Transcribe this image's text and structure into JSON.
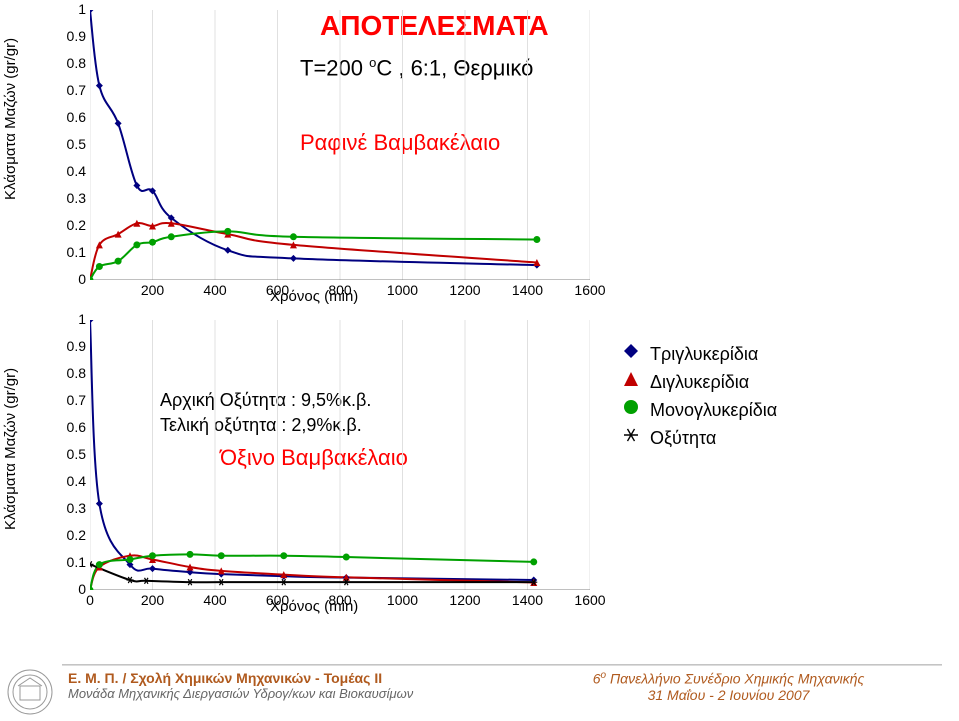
{
  "title": "ΑΠΟΤΕΛΕΣΜΑΤΑ",
  "subtitle": "Τ=200 οC , 6:1, Θερμικό",
  "subtitle_parts": {
    "prefix": "Τ=200 ",
    "sup": "o",
    "rest": "C , 6:1, Θερμικό"
  },
  "chartA": {
    "heading": "Ραφινέ Βαμβακέλαιο",
    "type": "line+scatter",
    "xlim": [
      0,
      1600
    ],
    "ylim": [
      0,
      1
    ],
    "xticks": [
      0,
      200,
      400,
      600,
      800,
      1000,
      1200,
      1400,
      1600
    ],
    "yticks": [
      0,
      0.1,
      0.2,
      0.3,
      0.4,
      0.5,
      0.6,
      0.7,
      0.8,
      0.9,
      1
    ],
    "xlabel": "Χρόνος (min)",
    "ylabel": "Κλάσματα Μαζών (gr/gr)",
    "grid_color": "#e0e0e0",
    "background_color": "#ffffff",
    "axis_color": "#808080",
    "marker_size": 7,
    "line_width": 2,
    "series": [
      {
        "name": "Τριγλυκερίδια",
        "color": "#000080",
        "marker": "diamond",
        "x": [
          0,
          30,
          90,
          150,
          200,
          260,
          441,
          651,
          1430
        ],
        "y": [
          1.0,
          0.72,
          0.58,
          0.35,
          0.33,
          0.23,
          0.11,
          0.08,
          0.055
        ]
      },
      {
        "name": "Διγλυκερίδια",
        "color": "#c00000",
        "marker": "triangle",
        "x": [
          0,
          30,
          90,
          150,
          200,
          260,
          441,
          651,
          1430
        ],
        "y": [
          0.0,
          0.13,
          0.17,
          0.21,
          0.2,
          0.21,
          0.17,
          0.13,
          0.065
        ]
      },
      {
        "name": "Μονογλυκερίδια",
        "color": "#00a000",
        "marker": "circle",
        "x": [
          0,
          30,
          90,
          150,
          200,
          260,
          441,
          651,
          1430
        ],
        "y": [
          0.0,
          0.05,
          0.07,
          0.13,
          0.14,
          0.16,
          0.18,
          0.16,
          0.15
        ]
      }
    ]
  },
  "chartB": {
    "heading": "Όξινο Βαμβακέλαιο",
    "type": "line+scatter",
    "xlim": [
      0,
      1600
    ],
    "ylim": [
      0,
      1
    ],
    "xticks": [
      0,
      200,
      400,
      600,
      800,
      1000,
      1200,
      1400,
      1600
    ],
    "yticks": [
      0,
      0.1,
      0.2,
      0.3,
      0.4,
      0.5,
      0.6,
      0.7,
      0.8,
      0.9,
      1
    ],
    "xlabel": "Χρόνος (min)",
    "ylabel": "Κλάσματα Μαζών (gr/gr)",
    "grid_color": "#e0e0e0",
    "background_color": "#ffffff",
    "axis_color": "#808080",
    "marker_size": 7,
    "line_width": 2,
    "initial_acid_label": "Αρχική Οξύτητα : 9,5%κ.β.",
    "final_acid_label": "Τελική οξύτητα : 2,9%κ.β.",
    "series": [
      {
        "name": "Τριγλυκερίδια",
        "color": "#000080",
        "marker": "diamond",
        "x": [
          0,
          30,
          128,
          200,
          320,
          420,
          620,
          820,
          1420
        ],
        "y": [
          1.0,
          0.32,
          0.094,
          0.079,
          0.066,
          0.059,
          0.051,
          0.046,
          0.037
        ]
      },
      {
        "name": "Διγλυκερίδια",
        "color": "#c00000",
        "marker": "triangle",
        "x": [
          0,
          30,
          128,
          200,
          320,
          420,
          620,
          820,
          1420
        ],
        "y": [
          0.0,
          0.085,
          0.127,
          0.113,
          0.085,
          0.071,
          0.057,
          0.047,
          0.028
        ]
      },
      {
        "name": "Μονογλυκερίδια",
        "color": "#00a000",
        "marker": "circle",
        "x": [
          0,
          30,
          128,
          200,
          320,
          420,
          620,
          820,
          1420
        ],
        "y": [
          0.0,
          0.094,
          0.113,
          0.127,
          0.132,
          0.127,
          0.127,
          0.122,
          0.104
        ]
      },
      {
        "name": "Οξύτητα",
        "color": "#000000",
        "marker": "star",
        "x": [
          0,
          128,
          180,
          320,
          420,
          620,
          820,
          1420
        ],
        "y": [
          0.095,
          0.037,
          0.034,
          0.029,
          0.029,
          0.029,
          0.029,
          0.029
        ]
      }
    ]
  },
  "legend": [
    {
      "marker": "diamond",
      "color": "#000080",
      "label": "Τριγλυκερίδια"
    },
    {
      "marker": "triangle",
      "color": "#c00000",
      "label": "Διγλυκερίδια"
    },
    {
      "marker": "circle",
      "color": "#00a000",
      "label": "Μονογλυκερίδια"
    },
    {
      "marker": "star",
      "color": "#000000",
      "label": "Οξύτητα"
    }
  ],
  "footer": {
    "left1": "Ε. Μ. Π. / Σχολή Χημικών Μηχανικών - Τομέας ΙΙ",
    "left2": "Μονάδα Μηχανικής Διεργασιών Υδρογ/κων και Βιοκαυσίμων",
    "right1_prefix": "6",
    "right1_sup": "ο",
    "right1_rest": " Πανελλήνιο Συνέδριο Χημικής Μηχανικής",
    "right2": "31 Μαΐου - 2 Ιουνίου 2007"
  }
}
